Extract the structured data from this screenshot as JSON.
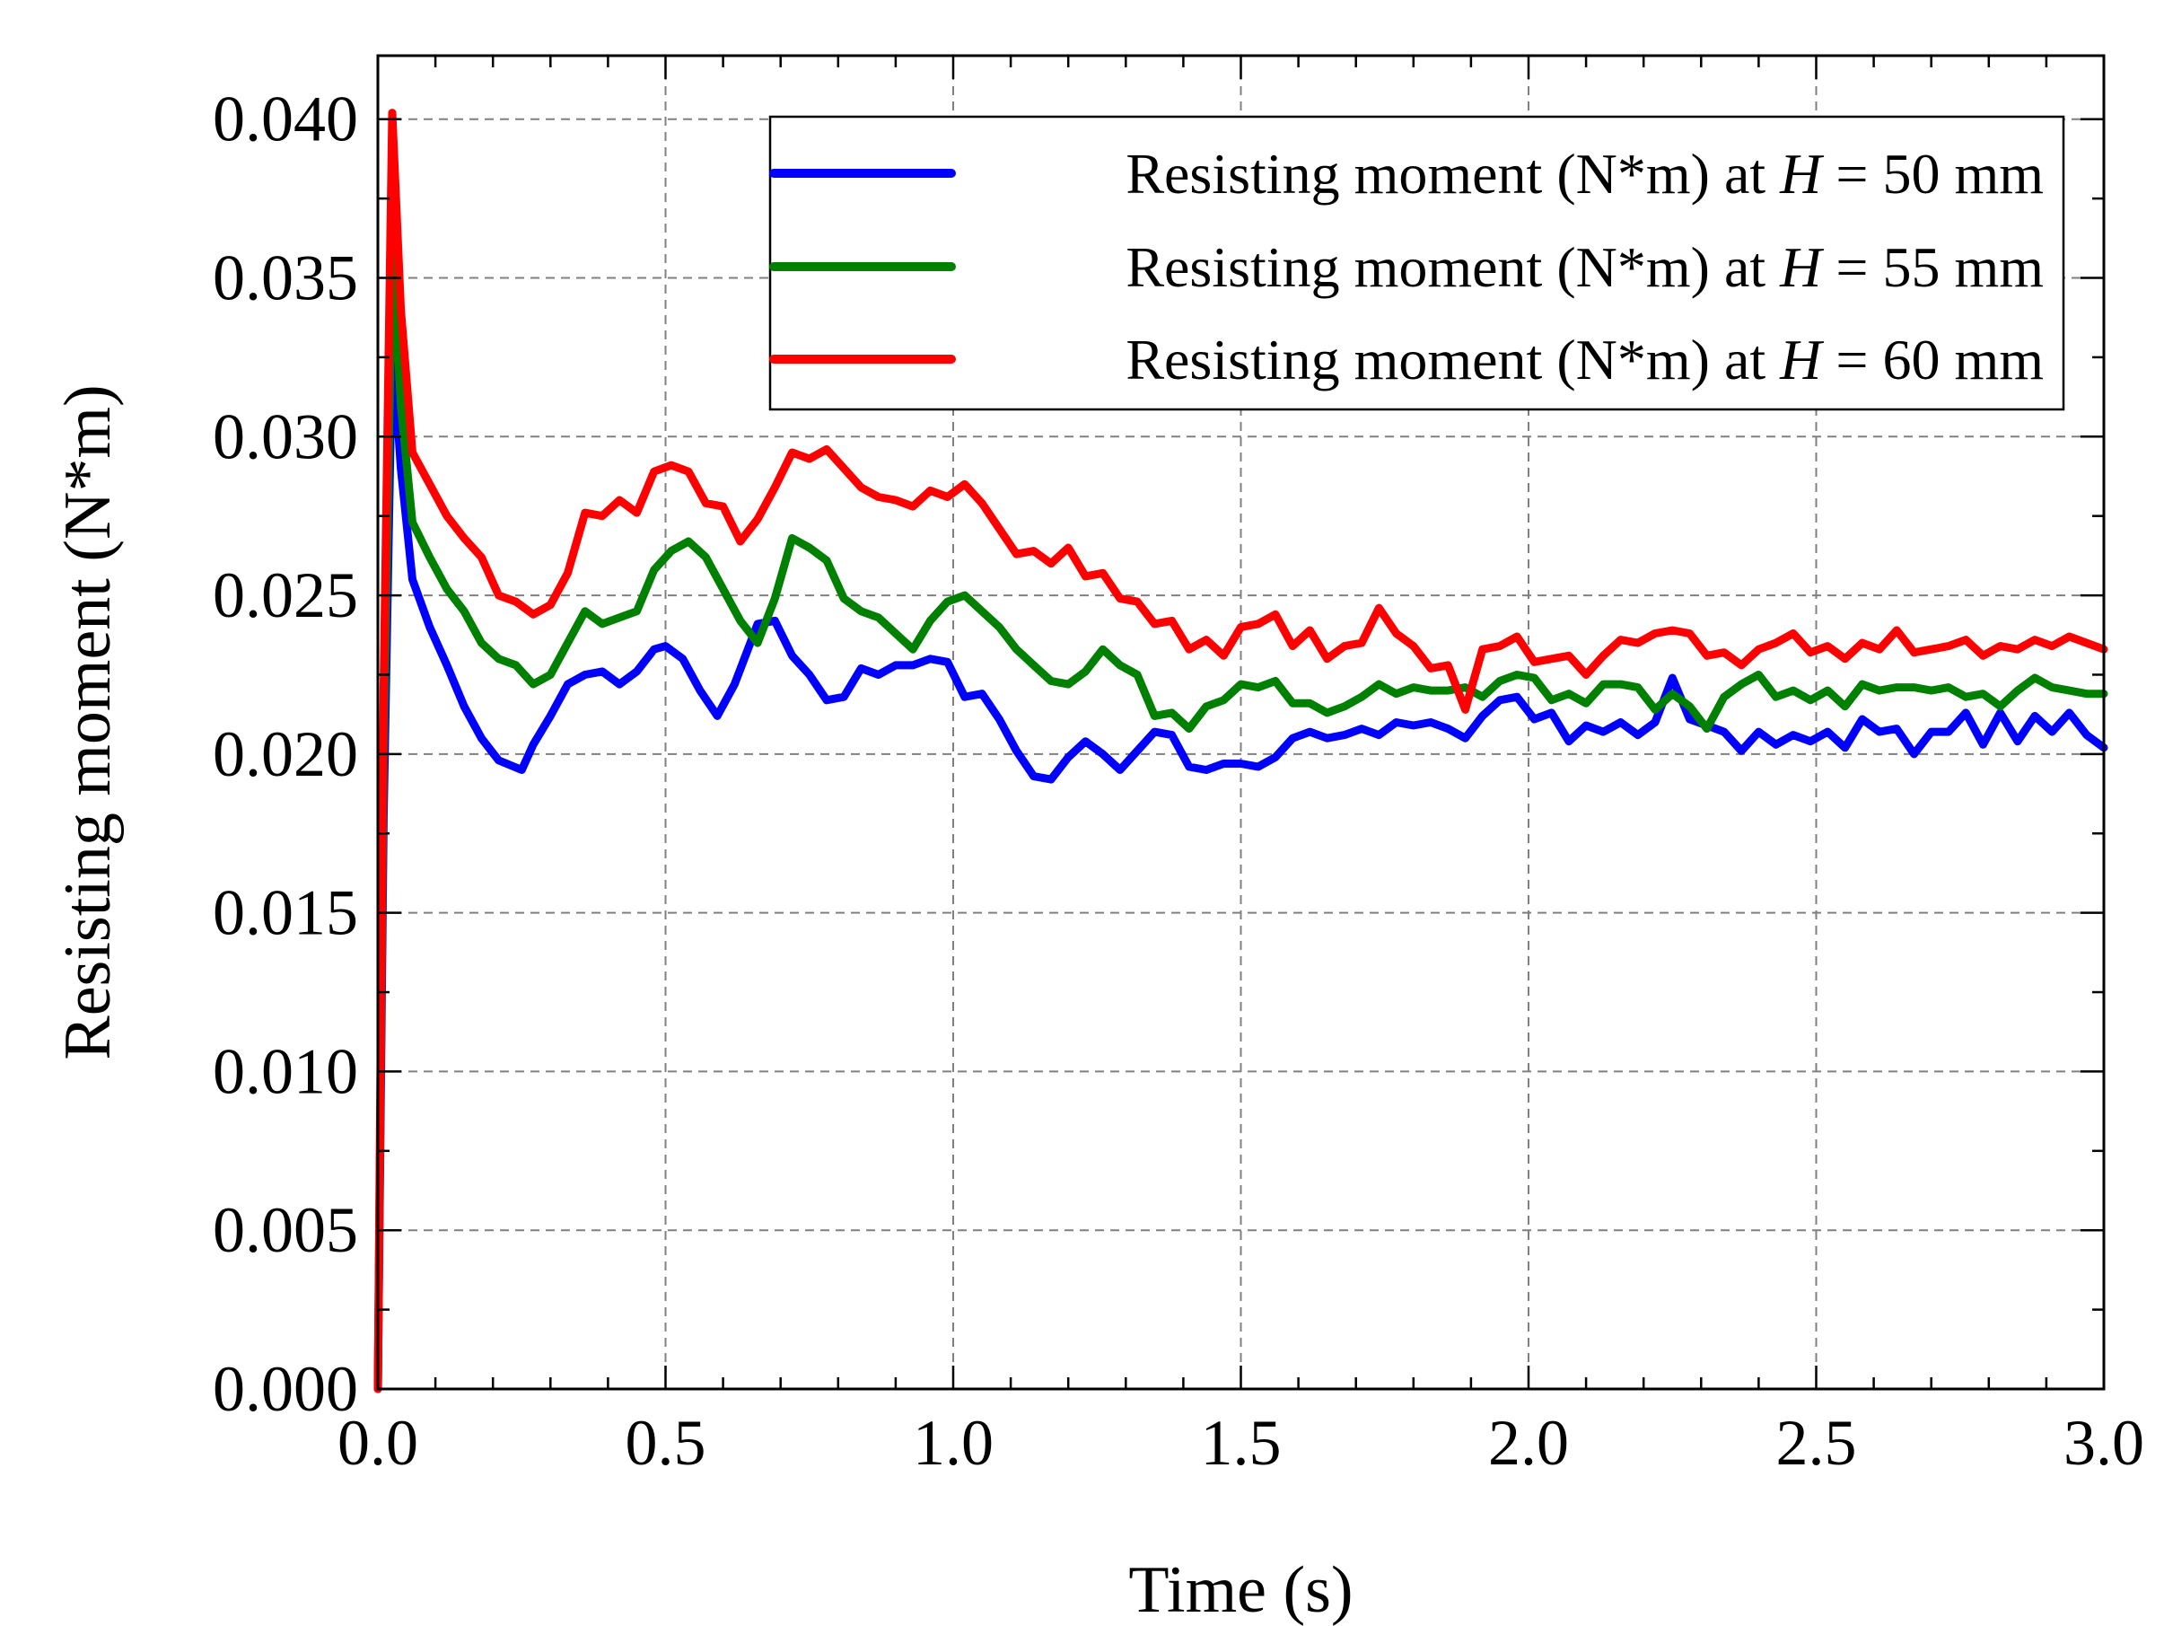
{
  "chart_data": {
    "type": "line",
    "title": "",
    "xlabel": "Time (s)",
    "ylabel": "Resisting moment (N*m)",
    "xlim": [
      0.0,
      3.0
    ],
    "ylim": [
      0.0,
      0.042
    ],
    "x_ticks": [
      "0.0",
      "0.5",
      "1.0",
      "1.5",
      "2.0",
      "2.5",
      "3.0"
    ],
    "x_tick_values": [
      0.0,
      0.5,
      1.0,
      1.5,
      2.0,
      2.5,
      3.0
    ],
    "y_ticks": [
      "0.000",
      "0.005",
      "0.010",
      "0.015",
      "0.020",
      "0.025",
      "0.030",
      "0.035",
      "0.040"
    ],
    "y_tick_values": [
      0.0,
      0.005,
      0.01,
      0.015,
      0.02,
      0.025,
      0.03,
      0.035,
      0.04
    ],
    "grid": true,
    "legend_position": "top-right",
    "series": [
      {
        "name": "Resisting moment (N*m) at H = 50 mm",
        "label_prefix": "Resisting moment (N*m) at ",
        "label_var": "H",
        "label_suffix": " = 50 mm",
        "color": "#0000ff",
        "x": [
          0.0,
          0.01,
          0.025,
          0.04,
          0.06,
          0.09,
          0.12,
          0.15,
          0.18,
          0.21,
          0.25,
          0.27,
          0.3,
          0.33,
          0.36,
          0.39,
          0.42,
          0.45,
          0.48,
          0.5,
          0.53,
          0.56,
          0.59,
          0.62,
          0.66,
          0.69,
          0.72,
          0.75,
          0.78,
          0.81,
          0.84,
          0.87,
          0.9,
          0.93,
          0.96,
          0.99,
          1.02,
          1.05,
          1.08,
          1.11,
          1.14,
          1.17,
          1.2,
          1.23,
          1.26,
          1.29,
          1.32,
          1.35,
          1.38,
          1.41,
          1.44,
          1.47,
          1.5,
          1.53,
          1.56,
          1.59,
          1.62,
          1.65,
          1.68,
          1.71,
          1.74,
          1.77,
          1.8,
          1.83,
          1.86,
          1.89,
          1.92,
          1.95,
          1.98,
          2.01,
          2.04,
          2.07,
          2.1,
          2.13,
          2.16,
          2.19,
          2.22,
          2.25,
          2.28,
          2.31,
          2.34,
          2.37,
          2.4,
          2.43,
          2.46,
          2.49,
          2.52,
          2.55,
          2.58,
          2.61,
          2.64,
          2.67,
          2.7,
          2.73,
          2.76,
          2.79,
          2.82,
          2.85,
          2.88,
          2.91,
          2.94,
          2.97,
          3.0
        ],
        "y": [
          0.0,
          0.018,
          0.033,
          0.029,
          0.0255,
          0.024,
          0.0228,
          0.0215,
          0.0205,
          0.0198,
          0.0195,
          0.0203,
          0.0212,
          0.0222,
          0.0225,
          0.0226,
          0.0222,
          0.0226,
          0.0233,
          0.0234,
          0.023,
          0.022,
          0.0212,
          0.0222,
          0.0241,
          0.0242,
          0.0231,
          0.0225,
          0.0217,
          0.0218,
          0.0227,
          0.0225,
          0.0228,
          0.0228,
          0.023,
          0.0229,
          0.0218,
          0.0219,
          0.0211,
          0.0201,
          0.0193,
          0.0192,
          0.0199,
          0.0204,
          0.02,
          0.0195,
          0.0201,
          0.0207,
          0.0206,
          0.0196,
          0.0195,
          0.0197,
          0.0197,
          0.0196,
          0.0199,
          0.0205,
          0.0207,
          0.0205,
          0.0206,
          0.0208,
          0.0206,
          0.021,
          0.0209,
          0.021,
          0.0208,
          0.0205,
          0.0212,
          0.0217,
          0.0218,
          0.0211,
          0.0213,
          0.0204,
          0.0209,
          0.0207,
          0.021,
          0.0206,
          0.021,
          0.0224,
          0.0211,
          0.0209,
          0.0207,
          0.0201,
          0.0207,
          0.0203,
          0.0206,
          0.0204,
          0.0207,
          0.0202,
          0.0211,
          0.0207,
          0.0208,
          0.02,
          0.0207,
          0.0207,
          0.0213,
          0.0203,
          0.0213,
          0.0204,
          0.0212,
          0.0207,
          0.0213,
          0.0206,
          0.0202
        ]
      },
      {
        "name": "Resisting moment (N*m) at H = 55 mm",
        "label_prefix": "Resisting moment (N*m) at ",
        "label_var": "H",
        "label_suffix": " = 55 mm",
        "color": "#008000",
        "x": [
          0.0,
          0.01,
          0.025,
          0.04,
          0.06,
          0.09,
          0.12,
          0.15,
          0.18,
          0.21,
          0.24,
          0.27,
          0.3,
          0.33,
          0.36,
          0.39,
          0.42,
          0.45,
          0.48,
          0.51,
          0.54,
          0.57,
          0.6,
          0.63,
          0.66,
          0.69,
          0.72,
          0.75,
          0.78,
          0.81,
          0.84,
          0.87,
          0.9,
          0.93,
          0.96,
          0.99,
          1.02,
          1.05,
          1.08,
          1.11,
          1.14,
          1.17,
          1.2,
          1.23,
          1.26,
          1.29,
          1.32,
          1.35,
          1.38,
          1.41,
          1.44,
          1.47,
          1.5,
          1.53,
          1.56,
          1.59,
          1.62,
          1.65,
          1.68,
          1.71,
          1.74,
          1.77,
          1.8,
          1.83,
          1.86,
          1.89,
          1.92,
          1.95,
          1.98,
          2.01,
          2.04,
          2.07,
          2.1,
          2.13,
          2.16,
          2.19,
          2.22,
          2.25,
          2.28,
          2.31,
          2.34,
          2.37,
          2.4,
          2.43,
          2.46,
          2.49,
          2.52,
          2.55,
          2.58,
          2.61,
          2.64,
          2.67,
          2.7,
          2.73,
          2.76,
          2.79,
          2.82,
          2.85,
          2.88,
          2.91,
          2.94,
          2.97,
          3.0
        ],
        "y": [
          0.0,
          0.02,
          0.036,
          0.031,
          0.0273,
          0.0262,
          0.0252,
          0.0245,
          0.0235,
          0.023,
          0.0228,
          0.0222,
          0.0225,
          0.0235,
          0.0245,
          0.0241,
          0.0243,
          0.0245,
          0.0258,
          0.0264,
          0.0267,
          0.0262,
          0.0252,
          0.0242,
          0.0235,
          0.0249,
          0.0268,
          0.0265,
          0.0261,
          0.0249,
          0.0245,
          0.0243,
          0.0238,
          0.0233,
          0.0242,
          0.0248,
          0.025,
          0.0245,
          0.024,
          0.0233,
          0.0228,
          0.0223,
          0.0222,
          0.0226,
          0.0233,
          0.0228,
          0.0225,
          0.0212,
          0.0213,
          0.0208,
          0.0215,
          0.0217,
          0.0222,
          0.0221,
          0.0223,
          0.0216,
          0.0216,
          0.0213,
          0.0215,
          0.0218,
          0.0222,
          0.0219,
          0.0221,
          0.022,
          0.022,
          0.0221,
          0.0218,
          0.0223,
          0.0225,
          0.0224,
          0.0217,
          0.0219,
          0.0216,
          0.0222,
          0.0222,
          0.0221,
          0.0214,
          0.0219,
          0.0215,
          0.0208,
          0.0218,
          0.0222,
          0.0225,
          0.0218,
          0.022,
          0.0217,
          0.022,
          0.0215,
          0.0222,
          0.022,
          0.0221,
          0.0221,
          0.022,
          0.0221,
          0.0218,
          0.0219,
          0.0215,
          0.022,
          0.0224,
          0.0221,
          0.022,
          0.0219,
          0.0219
        ]
      },
      {
        "name": "Resisting moment (N*m) at H = 60 mm",
        "label_prefix": "Resisting moment (N*m) at ",
        "label_var": "H",
        "label_suffix": " = 60 mm",
        "color": "#ff0000",
        "x": [
          0.0,
          0.01,
          0.025,
          0.04,
          0.06,
          0.09,
          0.12,
          0.15,
          0.18,
          0.21,
          0.24,
          0.27,
          0.3,
          0.33,
          0.36,
          0.39,
          0.42,
          0.45,
          0.48,
          0.51,
          0.54,
          0.57,
          0.6,
          0.63,
          0.66,
          0.69,
          0.72,
          0.75,
          0.78,
          0.81,
          0.84,
          0.87,
          0.9,
          0.93,
          0.96,
          0.99,
          1.02,
          1.05,
          1.08,
          1.11,
          1.14,
          1.17,
          1.2,
          1.23,
          1.26,
          1.29,
          1.32,
          1.35,
          1.38,
          1.41,
          1.44,
          1.47,
          1.5,
          1.53,
          1.56,
          1.59,
          1.62,
          1.65,
          1.68,
          1.71,
          1.74,
          1.77,
          1.8,
          1.83,
          1.86,
          1.89,
          1.92,
          1.95,
          1.98,
          2.01,
          2.04,
          2.07,
          2.1,
          2.13,
          2.16,
          2.19,
          2.22,
          2.25,
          2.28,
          2.31,
          2.34,
          2.37,
          2.4,
          2.43,
          2.46,
          2.49,
          2.52,
          2.55,
          2.58,
          2.61,
          2.64,
          2.67,
          2.7,
          2.73,
          2.76,
          2.79,
          2.82,
          2.85,
          2.88,
          2.91,
          2.94,
          2.97,
          3.0
        ],
        "y": [
          0.0,
          0.022,
          0.0402,
          0.034,
          0.0295,
          0.0285,
          0.0275,
          0.0268,
          0.0262,
          0.025,
          0.0248,
          0.0244,
          0.0247,
          0.0257,
          0.0276,
          0.0275,
          0.028,
          0.0276,
          0.0289,
          0.0291,
          0.0289,
          0.0279,
          0.0278,
          0.0267,
          0.0274,
          0.0284,
          0.0295,
          0.0293,
          0.0296,
          0.029,
          0.0284,
          0.0281,
          0.028,
          0.0278,
          0.0283,
          0.0281,
          0.0285,
          0.0279,
          0.0271,
          0.0263,
          0.0264,
          0.026,
          0.0265,
          0.0256,
          0.0257,
          0.0249,
          0.0248,
          0.0241,
          0.0242,
          0.0233,
          0.0236,
          0.0231,
          0.024,
          0.0241,
          0.0244,
          0.0234,
          0.0239,
          0.023,
          0.0234,
          0.0235,
          0.0246,
          0.0238,
          0.0234,
          0.0227,
          0.0228,
          0.0214,
          0.0233,
          0.0234,
          0.0237,
          0.0229,
          0.023,
          0.0231,
          0.0225,
          0.0231,
          0.0236,
          0.0235,
          0.0238,
          0.0239,
          0.0238,
          0.0231,
          0.0232,
          0.0228,
          0.0233,
          0.0235,
          0.0238,
          0.0232,
          0.0234,
          0.023,
          0.0235,
          0.0233,
          0.0239,
          0.0232,
          0.0233,
          0.0234,
          0.0236,
          0.0231,
          0.0234,
          0.0233,
          0.0236,
          0.0234,
          0.0237,
          0.0235,
          0.0233
        ]
      }
    ]
  }
}
